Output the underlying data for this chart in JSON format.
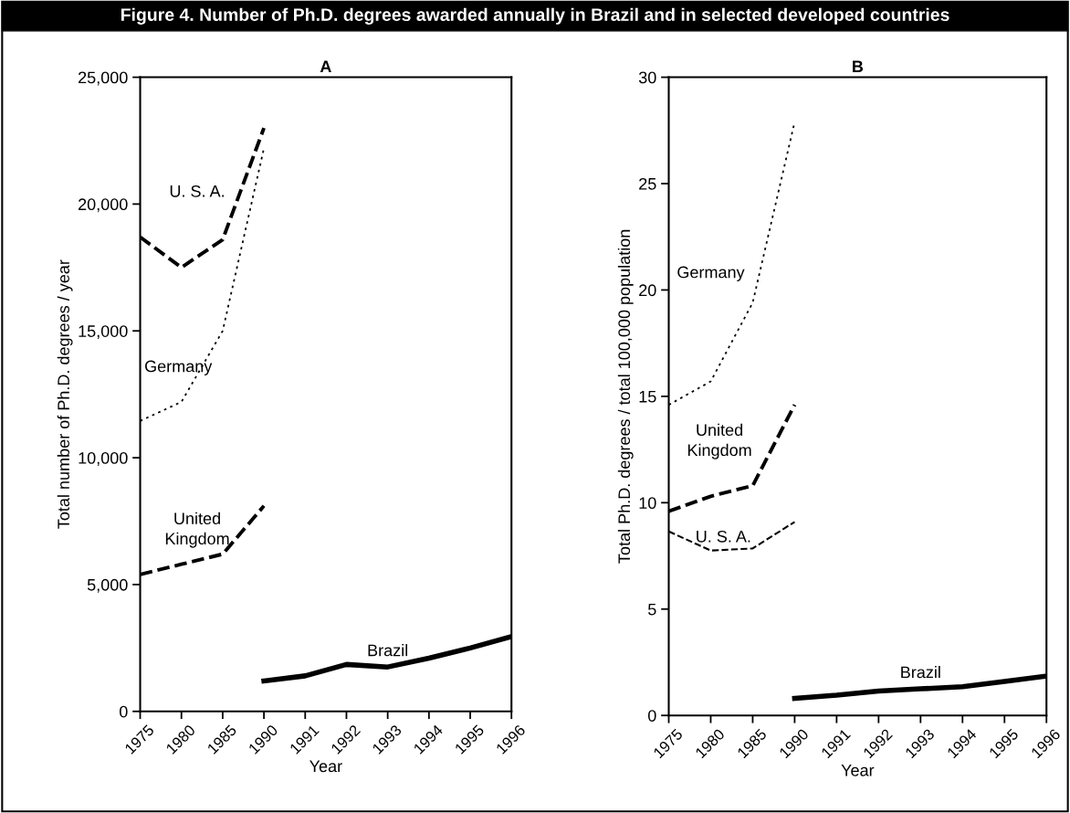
{
  "chart_data": [
    {
      "type": "line",
      "title": "A",
      "xlabel": "Year",
      "ylabel": "Total number of Ph.D. degrees / year",
      "categories": [
        "1975",
        "1980",
        "1985",
        "1990",
        "1991",
        "1992",
        "1993",
        "1994",
        "1995",
        "1996"
      ],
      "ylim": [
        0,
        25000
      ],
      "yticks": [
        {
          "value": 0,
          "label": "0"
        },
        {
          "value": 5000,
          "label": "5,000"
        },
        {
          "value": 10000,
          "label": "10,000"
        },
        {
          "value": 15000,
          "label": "15,000"
        },
        {
          "value": 20000,
          "label": "20,000"
        },
        {
          "value": 25000,
          "label": "25,000"
        }
      ],
      "grid": false,
      "legend": false,
      "marker": "none",
      "annotations": [
        "Figure 4. Number of Ph.D. degrees awarded annually in Brazil and in selected developed countries"
      ],
      "series": [
        {
          "name": "U. S. A.",
          "color": "#000000",
          "line_style": "dashed",
          "values": [
            18700,
            17500,
            18600,
            23000,
            null,
            null,
            null,
            null,
            null,
            null
          ]
        },
        {
          "name": "Germany",
          "color": "#000000",
          "line_style": "dotted",
          "values": [
            11450,
            12200,
            15000,
            22200,
            null,
            null,
            null,
            null,
            null,
            null
          ]
        },
        {
          "name": "United\nKingdom",
          "color": "#000000",
          "line_style": "dashed",
          "values": [
            5400,
            5800,
            6200,
            8100,
            null,
            null,
            null,
            null,
            null,
            null
          ]
        },
        {
          "name": "Brazil",
          "color": "#000000",
          "line_style": "solid",
          "values": [
            null,
            null,
            null,
            1200,
            1400,
            1850,
            1750,
            2100,
            2500,
            2950
          ]
        }
      ]
    },
    {
      "type": "line",
      "title": "B",
      "xlabel": "Year",
      "ylabel": "Total Ph.D. degrees / total 100,000 population",
      "categories": [
        "1975",
        "1980",
        "1985",
        "1990",
        "1991",
        "1992",
        "1993",
        "1994",
        "1995",
        "1996"
      ],
      "ylim": [
        0,
        30
      ],
      "yticks": [
        0,
        5,
        10,
        15,
        20,
        25,
        30
      ],
      "grid": false,
      "legend": false,
      "marker": "none",
      "series": [
        {
          "name": "Germany",
          "color": "#000000",
          "line_style": "dotted",
          "values": [
            14.6,
            15.7,
            19.4,
            27.9,
            null,
            null,
            null,
            null,
            null,
            null
          ]
        },
        {
          "name": "United\nKingdom",
          "color": "#000000",
          "line_style": "dashed",
          "values": [
            9.6,
            10.3,
            10.8,
            14.6,
            null,
            null,
            null,
            null,
            null,
            null
          ]
        },
        {
          "name": "U. S. A.",
          "color": "#000000",
          "line_style": "dashed",
          "values": [
            8.65,
            7.75,
            7.85,
            9.1,
            null,
            null,
            null,
            null,
            null,
            null
          ]
        },
        {
          "name": "Brazil",
          "color": "#000000",
          "line_style": "solid",
          "values": [
            null,
            null,
            null,
            0.8,
            0.95,
            1.15,
            1.25,
            1.35,
            1.6,
            1.85
          ]
        }
      ]
    }
  ]
}
